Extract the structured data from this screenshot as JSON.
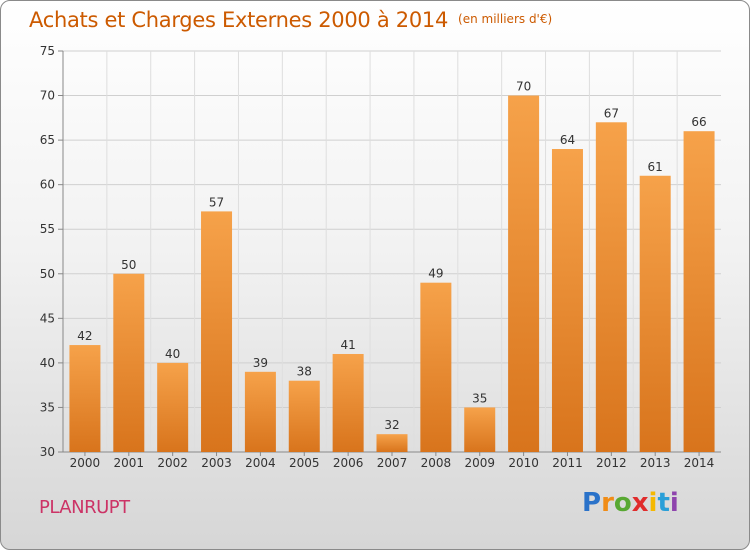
{
  "header": {
    "title": "Achats et Charges Externes 2000 à 2014",
    "unit": "(en milliers d'€)"
  },
  "footer": {
    "city": "PLANRUPT",
    "logo": "Proxiti"
  },
  "colors": {
    "title": "#cc5a00",
    "city": "#cc3366",
    "bar_light": "#f6a24a",
    "bar_dark": "#d8741c"
  },
  "chart_data": {
    "type": "bar",
    "title": "Achats et Charges Externes 2000 à 2014",
    "subtitle": "(en milliers d'€)",
    "categories": [
      "2000",
      "2001",
      "2002",
      "2003",
      "2004",
      "2005",
      "2006",
      "2007",
      "2008",
      "2009",
      "2010",
      "2011",
      "2012",
      "2013",
      "2014"
    ],
    "values": [
      42,
      50,
      40,
      57,
      39,
      38,
      41,
      32,
      49,
      35,
      70,
      64,
      67,
      61,
      66
    ],
    "ylim": [
      30,
      75
    ],
    "yticks": [
      30,
      35,
      40,
      45,
      50,
      55,
      60,
      65,
      70,
      75
    ],
    "grid": true,
    "data_labels": true
  }
}
